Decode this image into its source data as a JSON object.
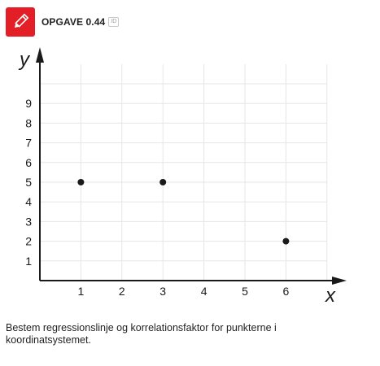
{
  "header": {
    "title": "OPGAVE 0.44",
    "badge": "ID",
    "icon": "pencil-icon",
    "accent_color": "#e31e26"
  },
  "chart_data": {
    "type": "scatter",
    "xlabel": "x",
    "ylabel": "y",
    "x_ticks": [
      "1",
      "2",
      "3",
      "4",
      "5",
      "6"
    ],
    "y_ticks": [
      "1",
      "2",
      "3",
      "4",
      "5",
      "6",
      "7",
      "8",
      "9"
    ],
    "xlim": [
      0,
      7
    ],
    "ylim": [
      0,
      10
    ],
    "grid": true,
    "points": [
      {
        "x": 1,
        "y": 5
      },
      {
        "x": 3,
        "y": 5
      },
      {
        "x": 6,
        "y": 2
      }
    ]
  },
  "description": "Bestem regressionslinje og korrelationsfaktor for punkterne i koordinatsystemet."
}
